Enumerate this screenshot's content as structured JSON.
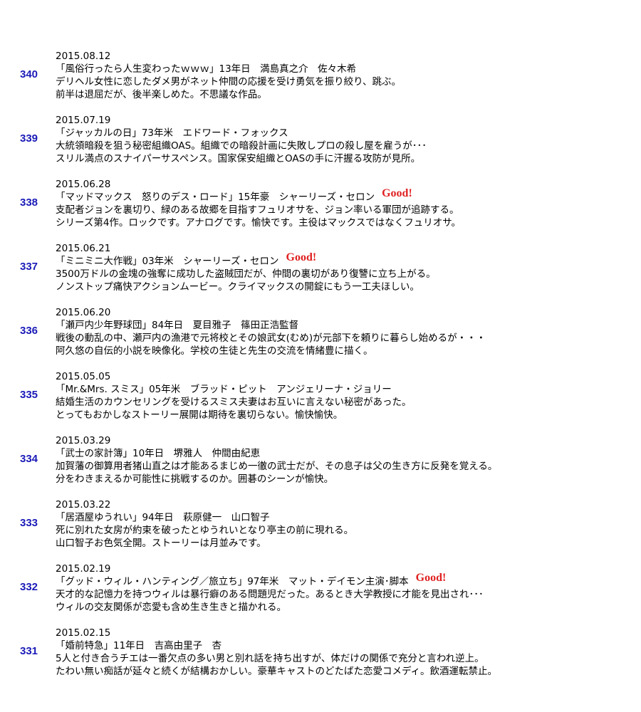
{
  "entries": [
    {
      "number": "340",
      "date": "2015.08.12",
      "title": "「風俗行ったら人生変わったｗｗｗ」13年日　満島真之介　佐々木希",
      "lines": [
        "デリヘル女性に恋したダメ男がネット仲間の応援を受け勇気を振り絞り、跳ぶ。",
        "前半は退屈だが、後半楽しめた。不思議な作品。"
      ]
    },
    {
      "number": "339",
      "date": "2015.07.19",
      "title": "「ジャッカルの日」73年米　エドワード・フォックス",
      "lines": [
        "大統領暗殺を狙う秘密組織OAS。組織での暗殺計画に失敗しプロの殺し屋を雇うが･･･",
        "スリル満点のスナイパーサスペンス。国家保安組織とOASの手に汗握る攻防が見所。"
      ]
    },
    {
      "number": "338",
      "date": "2015.06.28",
      "title": "「マッドマックス　怒りのデス・ロード」15年豪　シャーリーズ・セロン",
      "good": "Good!",
      "lines": [
        "支配者ジョンを裏切り、緑のある故郷を目指すフュリオサを、ジョン率いる軍団が追跡する。",
        "シリーズ第4作。ロックです。アナログです。愉快です。主役はマックスではなくフュリオサ。"
      ]
    },
    {
      "number": "337",
      "date": "2015.06.21",
      "title": "「ミニミニ大作戦」03年米　シャーリーズ・セロン",
      "good": "Good!",
      "lines": [
        "3500万ドルの金塊の強奪に成功した盗賊団だが、仲間の裏切があり復讐に立ち上がる。",
        "ノンストップ痛快アクションムービー。クライマックスの開錠にもう一工夫ほしい。"
      ]
    },
    {
      "number": "336",
      "date": "2015.06.20",
      "title": "「瀬戸内少年野球団」84年日　夏目雅子　篠田正浩監督",
      "lines": [
        "戦後の動乱の中、瀬戸内の漁港で元将校とその娘武女(むめ)が元部下を頼りに暮らし始めるが・・・",
        "阿久悠の自伝的小説を映像化。学校の生徒と先生の交流を情緒豊に描く。"
      ]
    },
    {
      "number": "335",
      "date": "2015.05.05",
      "title": "「Mr.&Mrs. スミス」05年米　ブラッド・ピット　アンジェリーナ・ジョリー",
      "lines": [
        "結婚生活のカウンセリングを受けるスミス夫妻はお互いに言えない秘密があった。",
        "とってもおかしなストーリー展開は期待を裏切らない。愉快愉快。"
      ]
    },
    {
      "number": "334",
      "date": "2015.03.29",
      "title": "「武士の家計簿」10年日　堺雅人　仲間由紀恵",
      "lines": [
        "加賀藩の御算用者猪山直之は才能あるまじめ一徹の武士だが、その息子は父の生き方に反発を覚える。",
        "分をわきまえるか可能性に挑戦するのか。囲碁のシーンが愉快。"
      ]
    },
    {
      "number": "333",
      "date": "2015.03.22",
      "title": "「居酒屋ゆうれい」94年日　萩原健一　山口智子",
      "lines": [
        "死に別れた女房が約束を破ったとゆうれいとなり亭主の前に現れる。",
        "山口智子お色気全開。ストーリーは月並みです。"
      ]
    },
    {
      "number": "332",
      "date": "2015.02.19",
      "title": "「グッド・ウィル・ハンティング／旅立ち」97年米　マット・デイモン主演･脚本",
      "good": "Good!",
      "lines": [
        "天才的な記憶力を持つウィルは暴行癖のある問題児だった。あるとき大学教授に才能を見出され･･･",
        "ウィルの交友関係が恋愛も含め生き生きと描かれる。"
      ]
    },
    {
      "number": "331",
      "date": "2015.02.15",
      "title": "「婚前特急」11年日　吉高由里子　杏",
      "lines": [
        "5人と付き合うチエは一番欠点の多い男と別れ話を持ち出すが、体だけの関係で充分と言われ逆上。",
        "たわい無い痴話が延々と続くが結構おかしい。豪華キャストのどたばた恋愛コメディ。飲酒運転禁止。"
      ]
    }
  ]
}
